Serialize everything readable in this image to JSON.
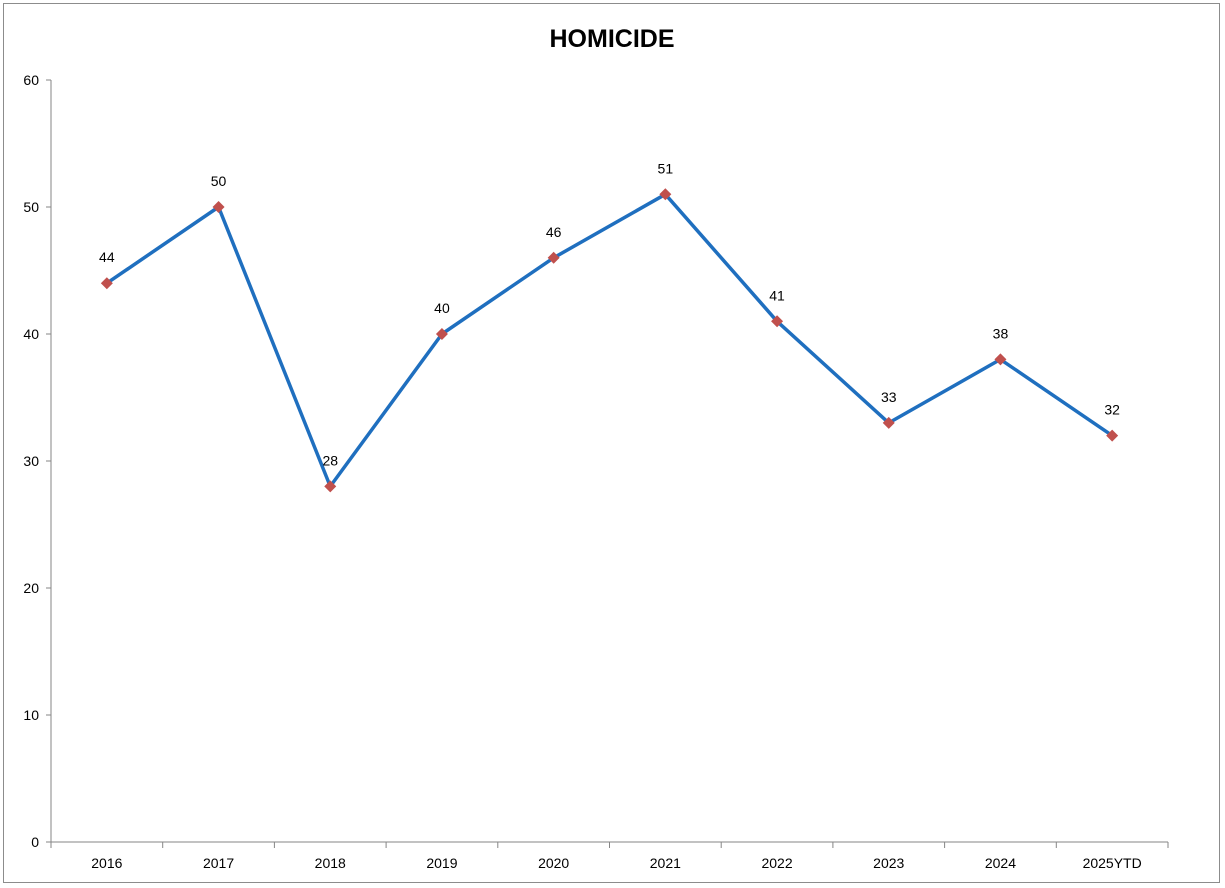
{
  "chart_data": {
    "type": "line",
    "title": "HOMICIDE",
    "xlabel": "",
    "ylabel": "",
    "categories": [
      "2016",
      "2017",
      "2018",
      "2019",
      "2020",
      "2021",
      "2022",
      "2023",
      "2024",
      "2025YTD"
    ],
    "series": [
      {
        "values": [
          44,
          50,
          28,
          40,
          46,
          51,
          41,
          33,
          38,
          32
        ]
      }
    ],
    "data_labels": [
      "44",
      "50",
      "28",
      "40",
      "46",
      "51",
      "41",
      "33",
      "38",
      "32"
    ],
    "ylim": [
      0,
      60
    ],
    "yticks": [
      "0",
      "10",
      "20",
      "30",
      "40",
      "50",
      "60"
    ],
    "grid": false,
    "legend": "none",
    "line_color": "#1f6fbf",
    "marker_color": "#c0504d",
    "marker": "diamond"
  }
}
